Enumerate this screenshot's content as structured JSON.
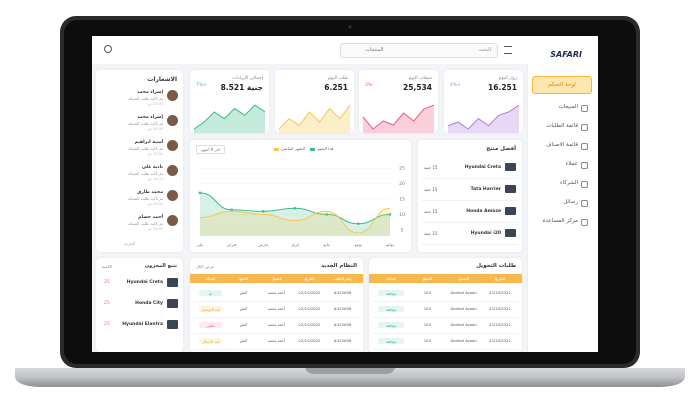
{
  "sidebar": {
    "logo": "SAFARI",
    "active": "لوحة التحكم",
    "menu": [
      "المبيعات",
      "قائمة الطلبات",
      "قائمة الاصناف",
      "عملاء",
      "الشركاء",
      "رسائل",
      "مركز المساعدة"
    ]
  },
  "topbar": {
    "search": "البحث",
    "filter": "المنتجات"
  },
  "cards": [
    {
      "label": "زوار اليوم",
      "value": "16.251",
      "change": "+4%",
      "color": "#b57be0",
      "trend": [
        6,
        7,
        5,
        8,
        6,
        9,
        10,
        12
      ]
    },
    {
      "label": "مبيعات اليوم",
      "value": "25,534",
      "change": "-3%",
      "color": "#ef5d86",
      "trend": [
        9,
        6,
        8,
        7,
        10,
        8,
        11,
        12
      ]
    },
    {
      "label": "طلب اليوم",
      "value": "6.251",
      "change": "",
      "color": "#f3c94f",
      "trend": [
        5,
        8,
        6,
        10,
        7,
        11,
        8,
        12
      ]
    },
    {
      "label": "إجمالي الإيرادات",
      "value": "جنية 8.521",
      "change": "+7%",
      "color": "#3dbb8a",
      "trend": [
        4,
        6,
        9,
        7,
        10,
        8,
        11,
        9
      ]
    }
  ],
  "notifications": {
    "title": "الاشعارات",
    "more": "المزيد",
    "items": [
      {
        "name": "إسراء محمد",
        "text": "تم تأكيد طلب الصيانة",
        "time": "10:00 ص"
      },
      {
        "name": "إسراء محمد",
        "text": "تم تأكيد طلب الصيانة",
        "time": "10:00 ص"
      },
      {
        "name": "أمنية ابراهيم",
        "text": "تم تأكيد طلب الصيانة",
        "time": "10:00 ص"
      },
      {
        "name": "نادية علي",
        "text": "تم تأكيد طلب الصيانة",
        "time": "10:00 ص"
      },
      {
        "name": "محمد طارق",
        "text": "تم تأكيد طلب الصيانة",
        "time": "10:00 ص"
      },
      {
        "name": "أحمد حسام",
        "text": "تم تأكيد طلب الصيانة",
        "time": "10:00 ص"
      }
    ]
  },
  "line_chart": {
    "type": "line",
    "period": "اخر 6 أشهر",
    "categories": [
      "يناير",
      "فبراير",
      "مارس",
      "ابريل",
      "مايو",
      "يونيو",
      "يوليو"
    ],
    "series": [
      {
        "name": "هذا الشهر",
        "color": "#3dbb8a",
        "values": [
          17,
          11.5,
          11,
          12,
          10,
          7,
          10
        ]
      },
      {
        "name": "الشهر الماضي",
        "color": "#f3c94f",
        "values": [
          9,
          11,
          10,
          8,
          11,
          4,
          12
        ]
      }
    ],
    "ylim": [
      3,
      27
    ],
    "yticks": [
      5,
      10,
      15,
      20,
      25
    ]
  },
  "best_products": {
    "title": "أفضل منتج",
    "items": [
      {
        "name": "Hyundai Creta",
        "price": "15 جنية"
      },
      {
        "name": "Tata Harrier",
        "price": "15 جنية"
      },
      {
        "name": "Honda Amaze",
        "price": "15 جنية"
      },
      {
        "name": "Hyundai i20",
        "price": "15 جنية"
      }
    ]
  },
  "transfers": {
    "title": "طلبات التحويل",
    "headers": [
      "التاريخ",
      "العميل",
      "المبلغ",
      "الحالة"
    ],
    "rows": [
      {
        "cells": [
          "22/10/2022",
          "Ahmed Ayaah",
          "100",
          "موافقة"
        ],
        "color": "#3dbb8a"
      },
      {
        "cells": [
          "22/10/2022",
          "Ahmed Ayaah",
          "100",
          "موافقة"
        ],
        "color": "#3dbb8a"
      },
      {
        "cells": [
          "22/10/2022",
          "Ahmed Ayaah",
          "100",
          "موافقة"
        ],
        "color": "#3dbb8a"
      },
      {
        "cells": [
          "22/10/2022",
          "Ahmed Ayaah",
          "100",
          "موافقة"
        ],
        "color": "#3dbb8a"
      }
    ]
  },
  "new_orders": {
    "title": "النظام الجديد",
    "link": "عرض الكل",
    "headers": [
      "رقم الطلب",
      "التاريخ",
      "العميل",
      "الدفع",
      "الحالة"
    ],
    "rows": [
      {
        "cells": [
          "#422658",
          "22/10/2022",
          "أحمد محمد",
          "كاش",
          "تم"
        ],
        "color": "#3dbb8a"
      },
      {
        "cells": [
          "#422658",
          "22/10/2022",
          "أحمد محمد",
          "كاش",
          "قيد التوصيل"
        ],
        "color": "#f3a93b"
      },
      {
        "cells": [
          "#422658",
          "22/10/2022",
          "أحمد محمد",
          "كاش",
          "ملغي"
        ],
        "color": "#ef5d86"
      },
      {
        "cells": [
          "#422658",
          "22/10/2022",
          "أحمد محمد",
          "كاش",
          "قيد الانتظار"
        ],
        "color": "#e0b93a"
      }
    ]
  },
  "inventory": {
    "title": "تتبع المخزون",
    "column": "الكمية",
    "items": [
      {
        "name": "Hyundai Creta",
        "qty": "25"
      },
      {
        "name": "Honda City",
        "qty": "25"
      },
      {
        "name": "Hyundai Elantra",
        "qty": "25"
      }
    ]
  }
}
